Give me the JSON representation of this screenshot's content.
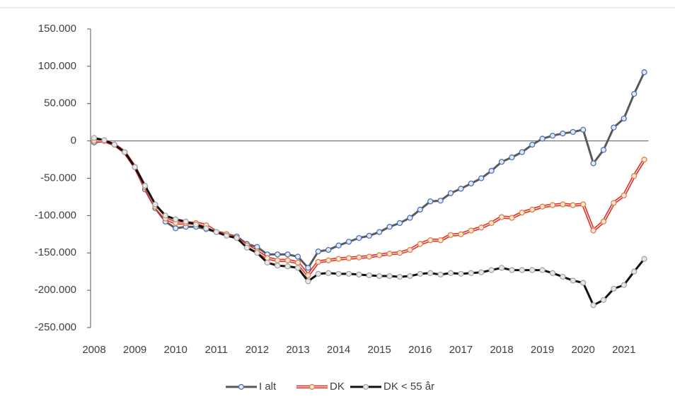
{
  "chart_data": {
    "type": "line",
    "categories": [
      "2008",
      null,
      null,
      null,
      "2009",
      null,
      null,
      null,
      "2010",
      null,
      null,
      null,
      "2011",
      null,
      null,
      null,
      "2012",
      null,
      null,
      null,
      "2013",
      null,
      null,
      null,
      "2014",
      null,
      null,
      null,
      "2015",
      null,
      null,
      null,
      "2016",
      null,
      null,
      null,
      "2017",
      null,
      null,
      null,
      "2018",
      null,
      null,
      null,
      "2019",
      null,
      null,
      null,
      "2020",
      null,
      null,
      null,
      "2021",
      null,
      null
    ],
    "series": [
      {
        "name": "I alt",
        "color": "#595959",
        "marker_color": "#4472c4",
        "values": [
          -2000,
          0,
          -5000,
          -15000,
          -35000,
          -65000,
          -90000,
          -108000,
          -117000,
          -115000,
          -115000,
          -118000,
          -122000,
          -125000,
          -128000,
          -138000,
          -142000,
          -152000,
          -152000,
          -152000,
          -155000,
          -170000,
          -148000,
          -146000,
          -140000,
          -135000,
          -130000,
          -127000,
          -122000,
          -115000,
          -110000,
          -103000,
          -92000,
          -81000,
          -80000,
          -70000,
          -64000,
          -57000,
          -50000,
          -40000,
          -28000,
          -22000,
          -15000,
          -5000,
          3000,
          7000,
          10000,
          12000,
          15000,
          -30000,
          -12000,
          18000,
          30000,
          63000,
          92000
        ]
      },
      {
        "name": "DK",
        "color": "#e0302a",
        "marker_color": "#ed7d31",
        "values": [
          0,
          0,
          -5000,
          -15000,
          -35000,
          -62000,
          -88000,
          -104000,
          -110000,
          -110000,
          -110000,
          -113000,
          -122000,
          -125000,
          -130000,
          -140000,
          -148000,
          -157000,
          -160000,
          -160000,
          -163000,
          -180000,
          -162000,
          -160000,
          -158000,
          -157000,
          -156000,
          -155000,
          -153000,
          -151000,
          -150000,
          -146000,
          -138000,
          -133000,
          -133000,
          -126000,
          -125000,
          -120000,
          -116000,
          -110000,
          -102000,
          -103000,
          -96000,
          -92000,
          -88000,
          -86000,
          -85000,
          -86000,
          -85000,
          -120000,
          -108000,
          -83000,
          -73000,
          -47000,
          -25000
        ]
      },
      {
        "name": "DK < 55 år",
        "color": "#111111",
        "marker_color": "#a5a5a5",
        "values": [
          4000,
          1000,
          -5000,
          -15000,
          -35000,
          -60000,
          -85000,
          -100000,
          -105000,
          -108000,
          -112000,
          -117000,
          -122000,
          -127000,
          -130000,
          -143000,
          -150000,
          -163000,
          -167000,
          -168000,
          -170000,
          -188000,
          -178000,
          -177000,
          -178000,
          -178000,
          -179000,
          -180000,
          -181000,
          -181000,
          -182000,
          -181000,
          -178000,
          -177000,
          -179000,
          -177000,
          -178000,
          -177000,
          -176000,
          -173000,
          -170000,
          -173000,
          -173000,
          -173000,
          -173000,
          -177000,
          -182000,
          -187000,
          -190000,
          -220000,
          -213000,
          -198000,
          -193000,
          -175000,
          -158000
        ]
      }
    ],
    "ylim": [
      -250000,
      150000
    ],
    "yticks": [
      {
        "value": 150000,
        "label": "150.000"
      },
      {
        "value": 100000,
        "label": "100.000"
      },
      {
        "value": 50000,
        "label": "50.000"
      },
      0,
      {
        "value": -50000,
        "label": "-50.000"
      },
      {
        "value": -100000,
        "label": "-100.000"
      },
      {
        "value": -150000,
        "label": "-150.000"
      },
      {
        "value": -200000,
        "label": "-200.000"
      },
      {
        "value": -250000,
        "label": "-250.000"
      }
    ],
    "legend": "bottom"
  }
}
